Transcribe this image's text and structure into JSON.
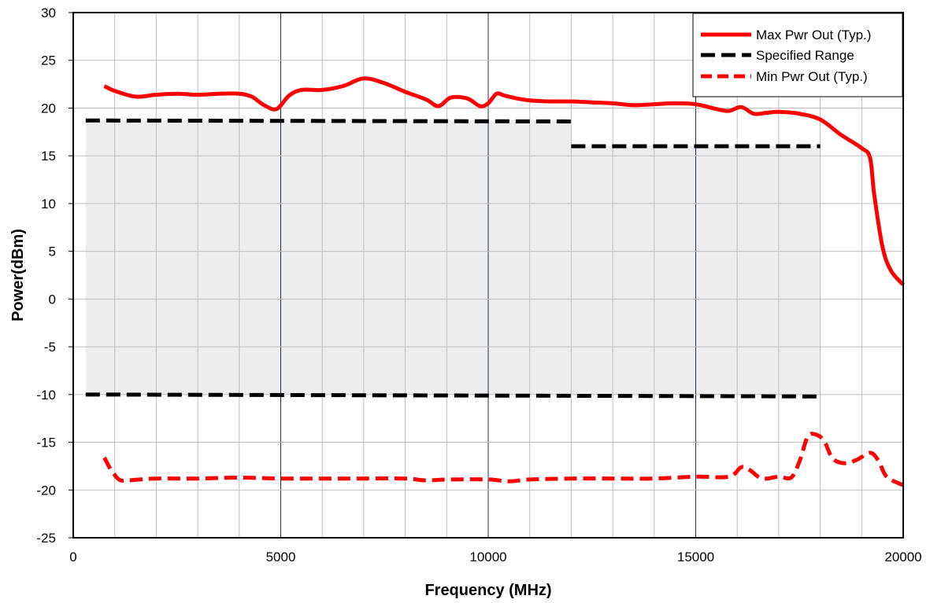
{
  "chart_data": {
    "type": "line",
    "title": "",
    "xlabel": "Frequency (MHz)",
    "ylabel": "Power(dBm)",
    "xlim": [
      0,
      20000
    ],
    "ylim": [
      -25,
      30
    ],
    "xticks": [
      0,
      5000,
      10000,
      15000,
      20000
    ],
    "yticks": [
      30,
      25,
      20,
      15,
      10,
      5,
      0,
      -5,
      -10,
      -15,
      -20,
      -25
    ],
    "minor_x_step": 1000,
    "grid": true,
    "legend_position": "top-right",
    "colors": {
      "max": "#ff0000",
      "specified": "#000000",
      "min": "#ff0000",
      "band": "#ededed",
      "major_grid": "#1f2a55",
      "minor_grid": "#bfbfbf"
    },
    "shaded_band": [
      {
        "x0": 300,
        "x1": 12000,
        "y0": -10,
        "y1": 18.7
      },
      {
        "x0": 12000,
        "x1": 18000,
        "y0": -10,
        "y1": 16
      }
    ],
    "series": [
      {
        "name": "Max Pwr Out (Typ.)",
        "style": "solid",
        "x": [
          750,
          1000,
          1500,
          2000,
          2500,
          3000,
          3500,
          4000,
          4300,
          4600,
          4900,
          5200,
          5500,
          6000,
          6500,
          7000,
          7500,
          8000,
          8500,
          8800,
          9100,
          9500,
          9800,
          10000,
          10200,
          10400,
          10700,
          11000,
          11500,
          12000,
          12500,
          13000,
          13500,
          14000,
          14500,
          15000,
          15500,
          15800,
          16100,
          16400,
          16700,
          17000,
          17500,
          18000,
          18500,
          19000,
          19200,
          19300,
          19500,
          19700,
          20000
        ],
        "y": [
          22.3,
          21.8,
          21.2,
          21.4,
          21.5,
          21.4,
          21.5,
          21.5,
          21.2,
          20.3,
          19.9,
          21.3,
          21.9,
          21.9,
          22.3,
          23.1,
          22.6,
          21.7,
          20.9,
          20.2,
          21.1,
          21.0,
          20.2,
          20.5,
          21.5,
          21.3,
          21.0,
          20.8,
          20.7,
          20.7,
          20.6,
          20.5,
          20.3,
          20.4,
          20.5,
          20.4,
          19.9,
          19.7,
          20.1,
          19.4,
          19.5,
          19.6,
          19.4,
          18.8,
          17.2,
          15.8,
          14.8,
          11.0,
          5.5,
          3.0,
          1.5
        ]
      },
      {
        "name": "Specified Range",
        "style": "dashed",
        "segments": [
          {
            "x": [
              300,
              12000
            ],
            "y": [
              18.7,
              18.6
            ]
          },
          {
            "x": [
              12000,
              18000
            ],
            "y": [
              16.0,
              16.0
            ]
          },
          {
            "x": [
              300,
              18000
            ],
            "y": [
              -10.0,
              -10.2
            ]
          }
        ]
      },
      {
        "name": "Min Pwr Out (Typ.)",
        "style": "dashed",
        "x": [
          750,
          900,
          1100,
          1300,
          1600,
          2000,
          3000,
          4000,
          5000,
          6000,
          7000,
          8000,
          8500,
          9000,
          10000,
          10500,
          11000,
          12000,
          13000,
          14000,
          15000,
          15800,
          16100,
          16300,
          16600,
          17000,
          17300,
          17500,
          17700,
          17900,
          18100,
          18300,
          18600,
          18900,
          19200,
          19400,
          19600,
          20000
        ],
        "y": [
          -16.6,
          -17.8,
          -18.9,
          -19.0,
          -18.9,
          -18.8,
          -18.8,
          -18.7,
          -18.8,
          -18.8,
          -18.8,
          -18.8,
          -19.0,
          -18.9,
          -18.9,
          -19.1,
          -18.9,
          -18.8,
          -18.8,
          -18.8,
          -18.6,
          -18.6,
          -17.6,
          -17.9,
          -18.8,
          -18.6,
          -18.7,
          -17.0,
          -14.4,
          -14.2,
          -14.9,
          -16.7,
          -17.2,
          -16.8,
          -16.1,
          -16.9,
          -18.6,
          -19.5
        ]
      }
    ]
  }
}
